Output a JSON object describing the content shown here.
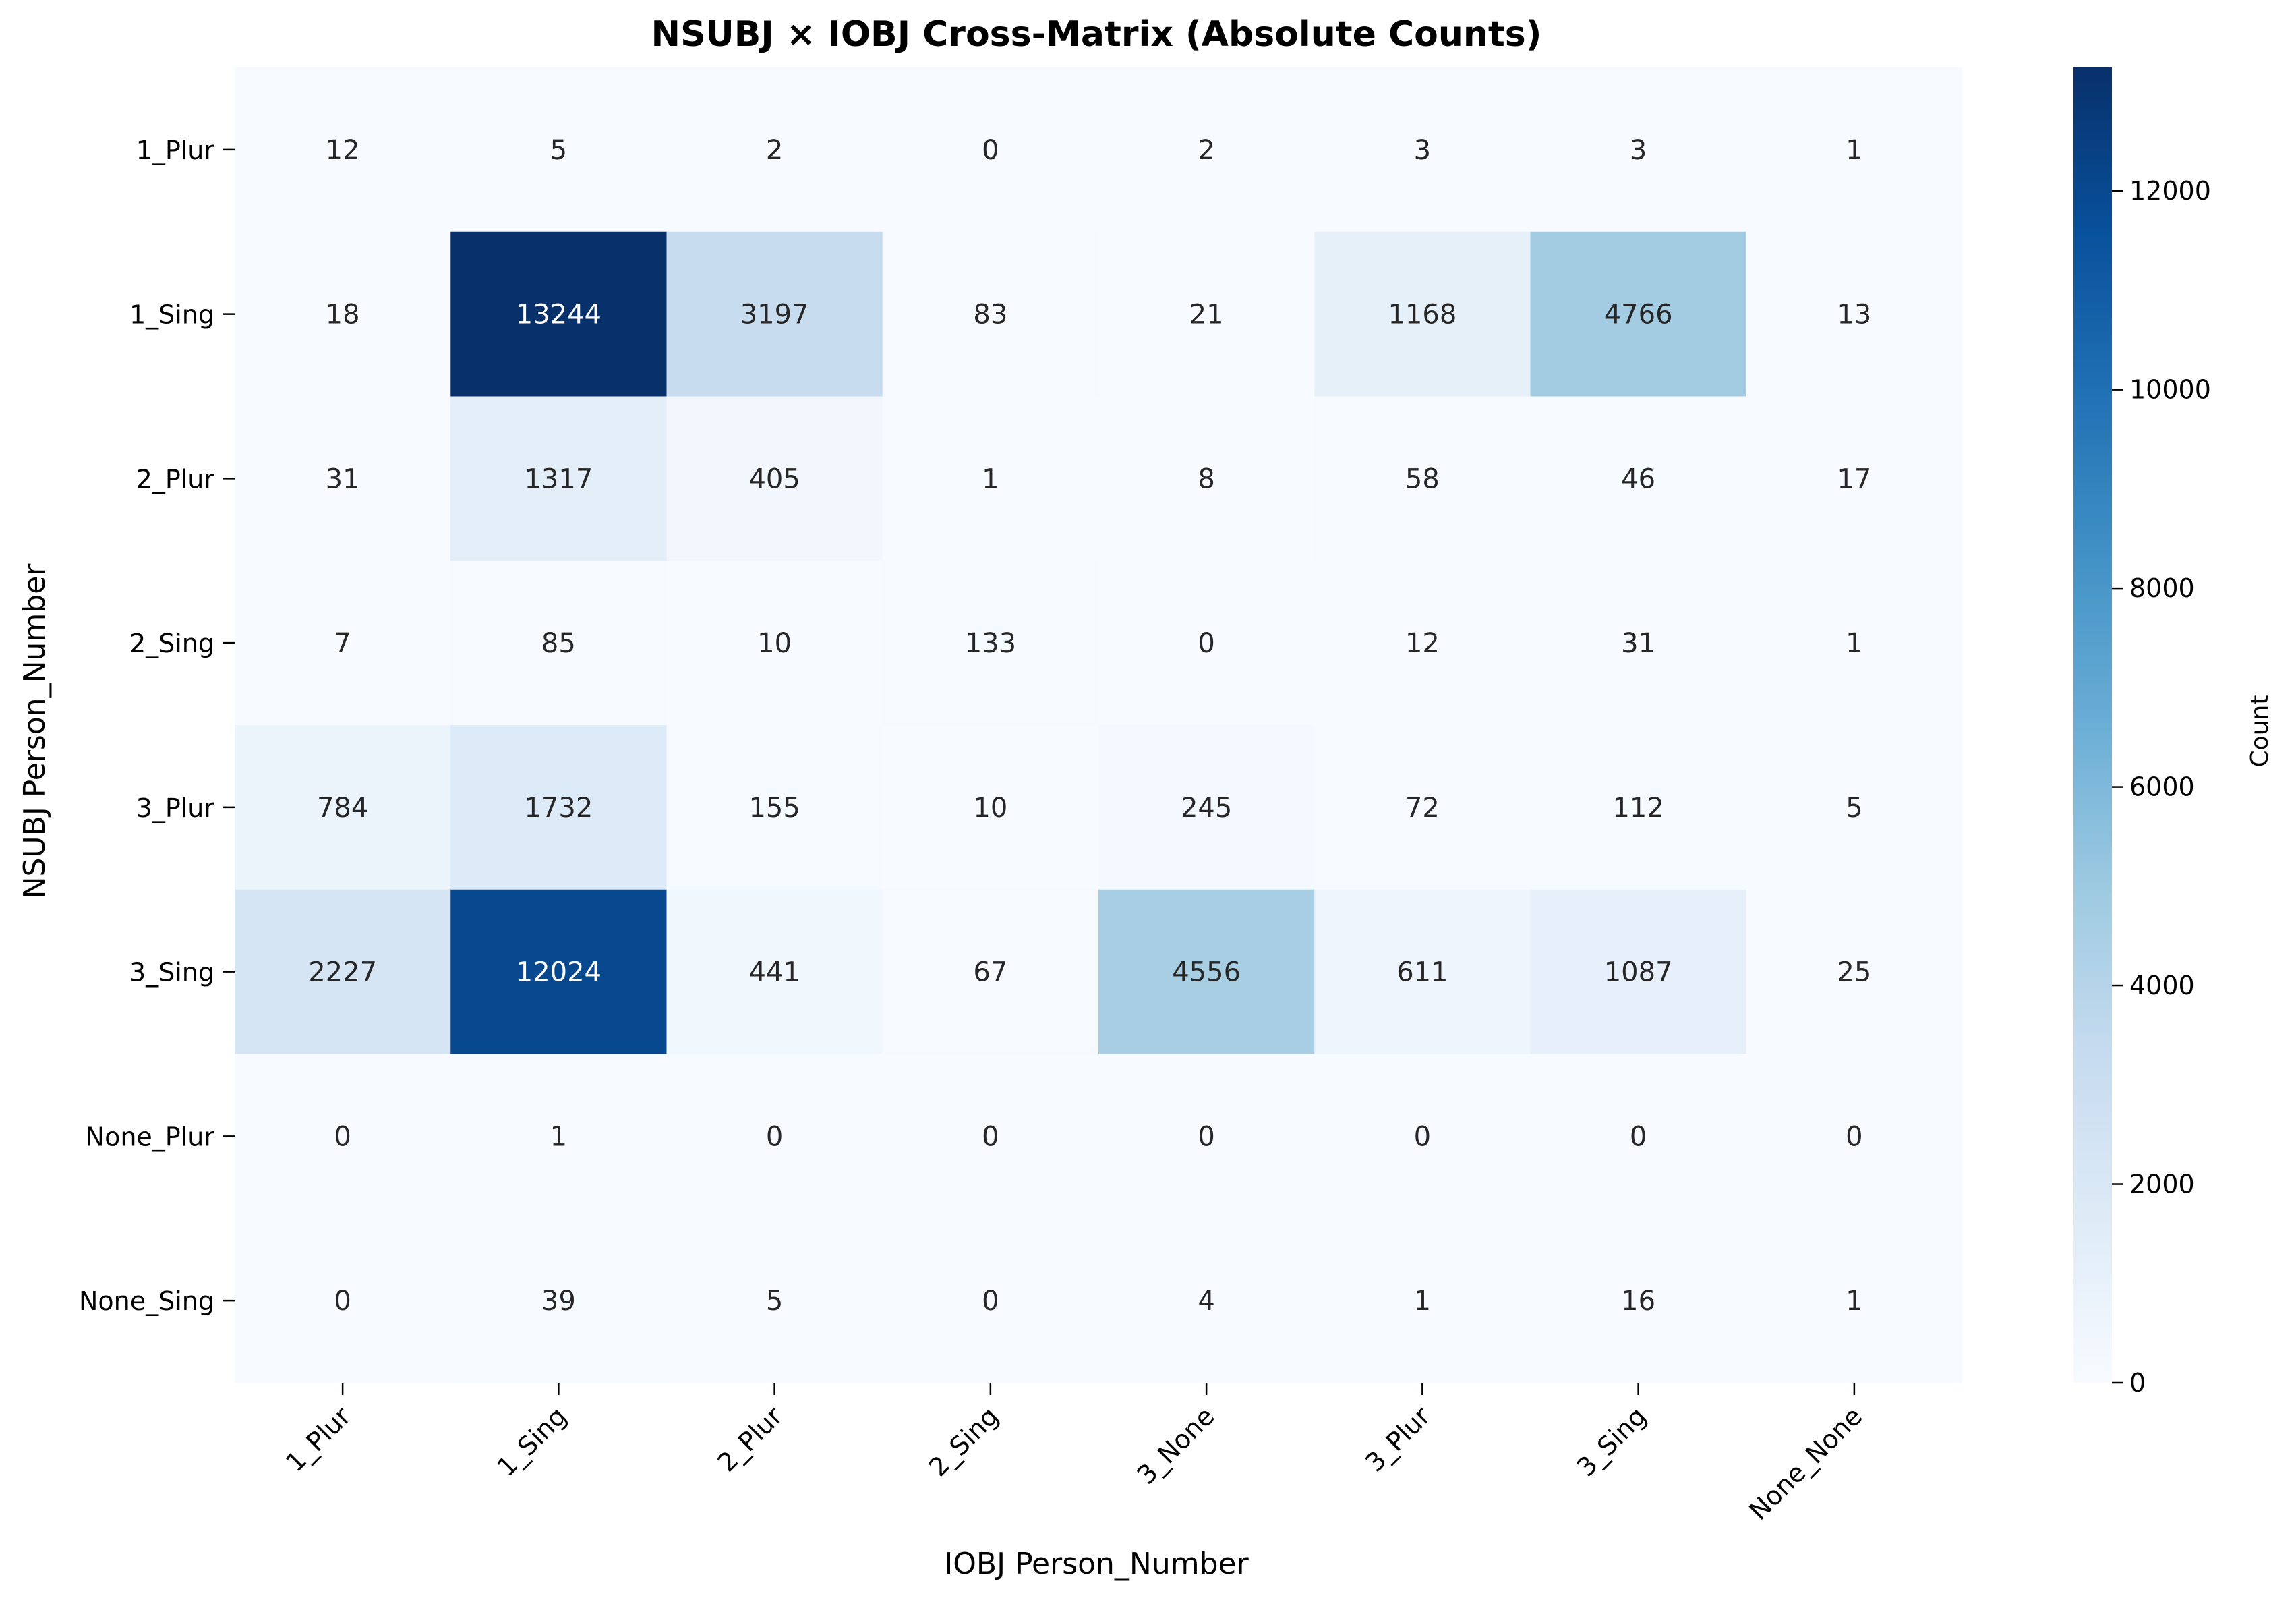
{
  "chart_data": {
    "type": "heatmap",
    "title": "NSUBJ × IOBJ Cross-Matrix (Absolute Counts)",
    "xlabel": "IOBJ Person_Number",
    "ylabel": "NSUBJ Person_Number",
    "x_categories": [
      "1_Plur",
      "1_Sing",
      "2_Plur",
      "2_Sing",
      "3_None",
      "3_Plur",
      "3_Sing",
      "None_None"
    ],
    "y_categories": [
      "1_Plur",
      "1_Sing",
      "2_Plur",
      "2_Sing",
      "3_Plur",
      "3_Sing",
      "None_Plur",
      "None_Sing"
    ],
    "values": [
      [
        12,
        5,
        2,
        0,
        2,
        3,
        3,
        1
      ],
      [
        18,
        13244,
        3197,
        83,
        21,
        1168,
        4766,
        13
      ],
      [
        31,
        1317,
        405,
        1,
        8,
        58,
        46,
        17
      ],
      [
        7,
        85,
        10,
        133,
        0,
        12,
        31,
        1
      ],
      [
        784,
        1732,
        155,
        10,
        245,
        72,
        112,
        5
      ],
      [
        2227,
        12024,
        441,
        67,
        4556,
        611,
        1087,
        25
      ],
      [
        0,
        1,
        0,
        0,
        0,
        0,
        0,
        0
      ],
      [
        0,
        39,
        5,
        0,
        4,
        1,
        16,
        1
      ]
    ],
    "colormap": "Blues",
    "colorbar": {
      "label": "Count",
      "range": [
        0,
        13244
      ],
      "ticks": [
        0,
        2000,
        4000,
        6000,
        8000,
        10000,
        12000
      ],
      "tick_labels": [
        "0",
        "2000",
        "4000",
        "6000",
        "8000",
        "10000",
        "12000"
      ]
    },
    "colors": {
      "low": "#f7fbff",
      "high": "#08306b",
      "annotation_dark": "#262626",
      "annotation_light": "#ffffff"
    }
  }
}
